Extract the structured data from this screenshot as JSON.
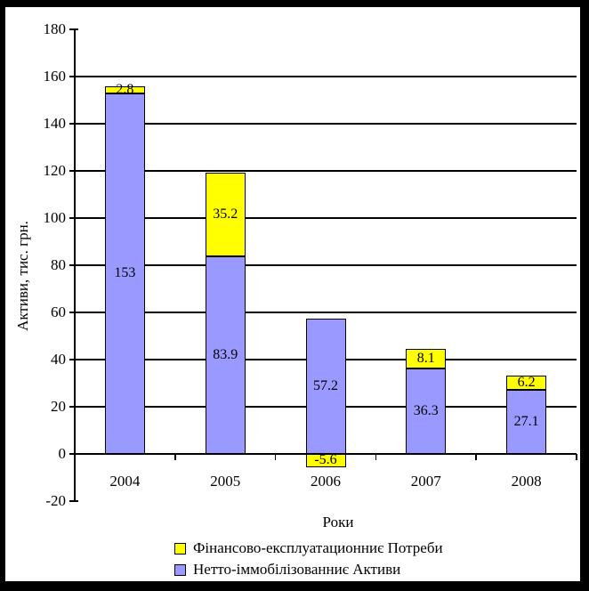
{
  "chart_data": {
    "type": "bar",
    "stacked": true,
    "title": "",
    "xlabel": "Роки",
    "ylabel": "Активи, тис. грн.",
    "categories": [
      "2004",
      "2005",
      "2006",
      "2007",
      "2008"
    ],
    "series": [
      {
        "name": "Фінансово-експлуатационниє Потреби",
        "color": "#ffff00",
        "role": "top",
        "values": [
          2.8,
          35.2,
          -5.6,
          8.1,
          6.2
        ],
        "labels": [
          "2.8",
          "35.2",
          "-5.6",
          "8.1",
          "6.2"
        ]
      },
      {
        "name": "Нетто-іммобілізованниє Активи",
        "color": "#9999ff",
        "role": "base",
        "values": [
          153,
          83.9,
          57.2,
          36.3,
          27.1
        ],
        "labels": [
          "153",
          "83.9",
          "57.2",
          "36.3",
          "27.1"
        ]
      }
    ],
    "ylim": [
      -20,
      180
    ],
    "yticks": [
      -20,
      0,
      20,
      40,
      60,
      80,
      100,
      120,
      140,
      160,
      180
    ],
    "grid": true,
    "data_labels": true,
    "legend_position": "bottom"
  },
  "colors": {
    "frame": "#000000",
    "background": "#ffffff",
    "grid": "#000000",
    "bar_border": "#000000"
  }
}
